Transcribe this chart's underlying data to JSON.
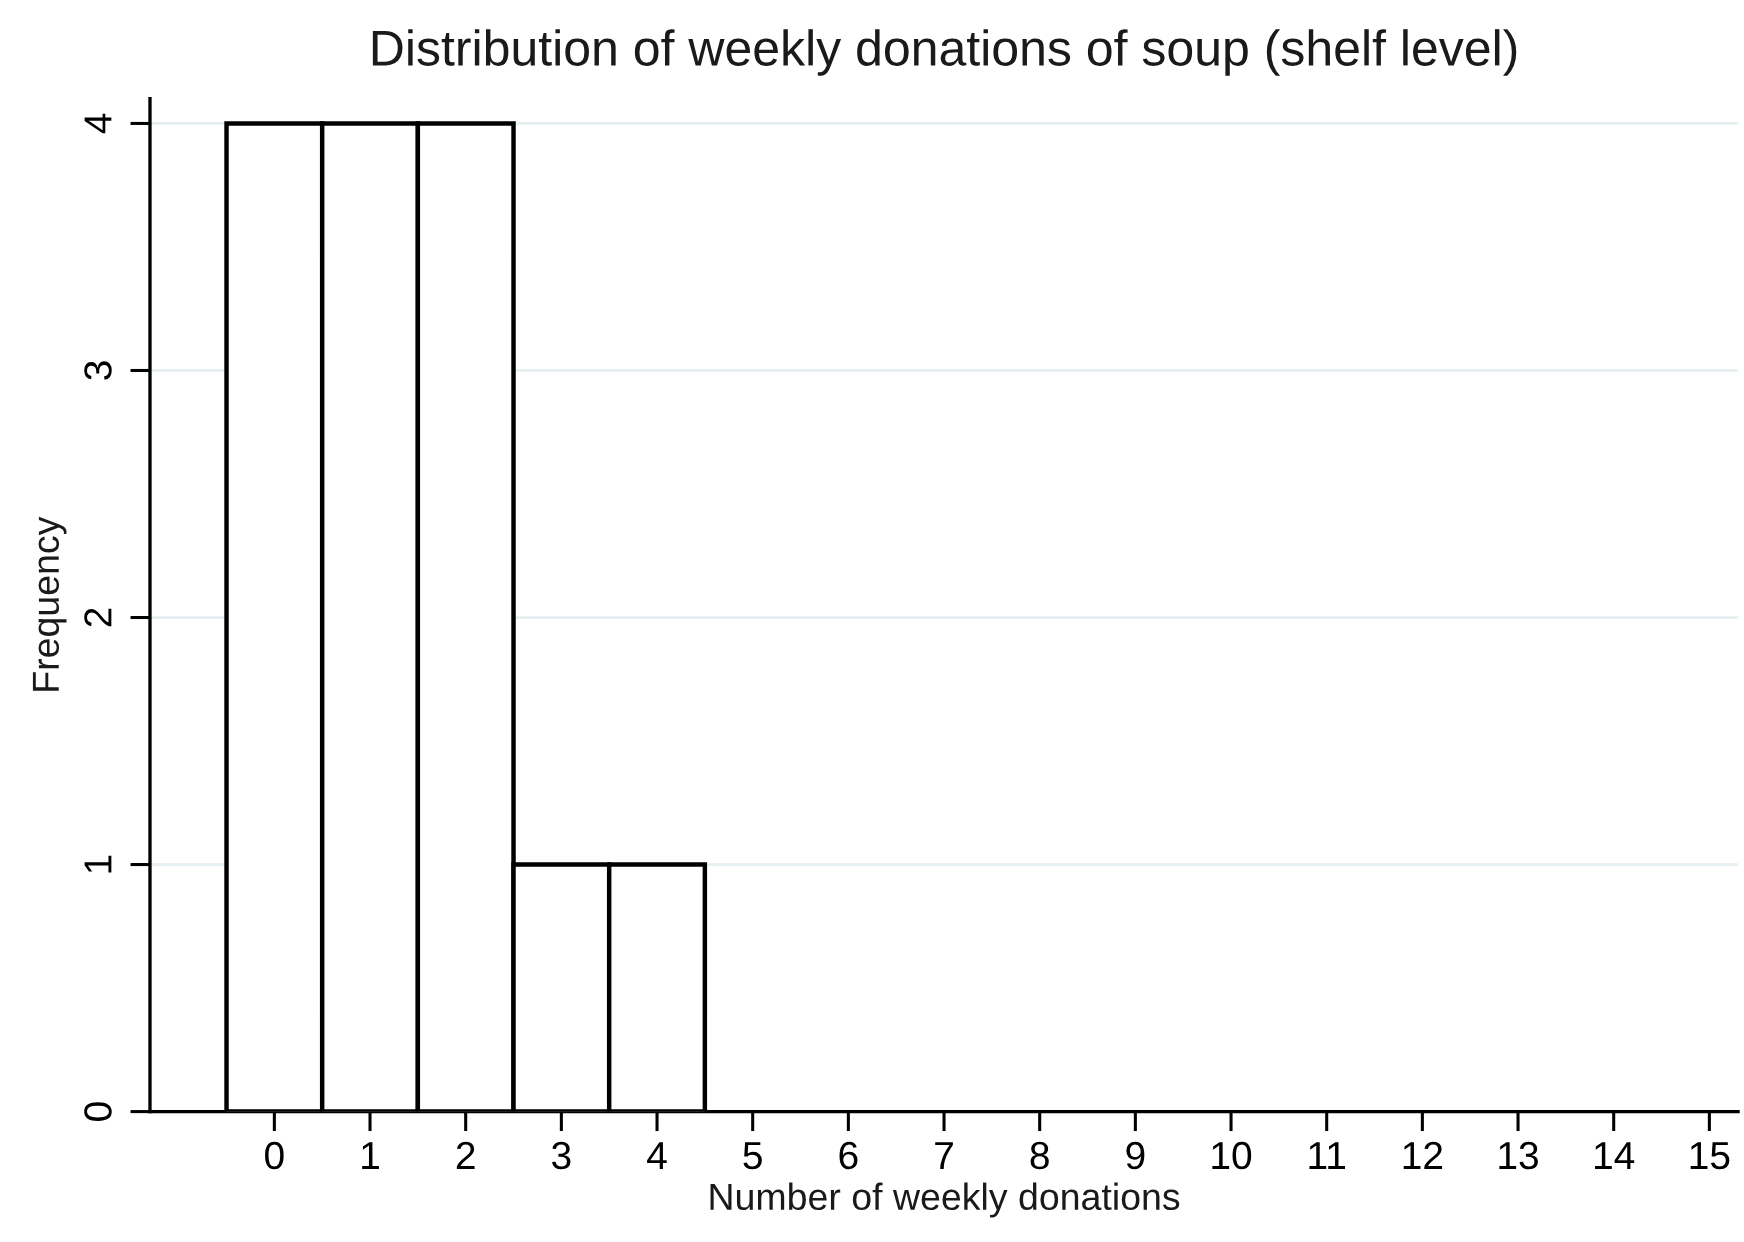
{
  "chart_data": {
    "type": "histogram",
    "title": "Distribution of weekly donations of soup (shelf level)",
    "xlabel": "Number of weekly donations",
    "ylabel": "Frequency",
    "bins": [
      -0.5,
      0.5,
      1.5,
      2.5,
      3.5,
      4.5
    ],
    "values": [
      4,
      4,
      4,
      1,
      1
    ],
    "color": "#ffffff",
    "xlim": [
      -1.3,
      15.3
    ],
    "xticks": [
      0,
      1,
      2,
      3,
      4,
      5,
      6,
      7,
      8,
      9,
      10,
      11,
      12,
      13,
      14,
      15
    ],
    "ylim": [
      0,
      4.1
    ],
    "yticks": [
      0,
      1,
      2,
      3,
      4
    ],
    "grid": "y"
  }
}
